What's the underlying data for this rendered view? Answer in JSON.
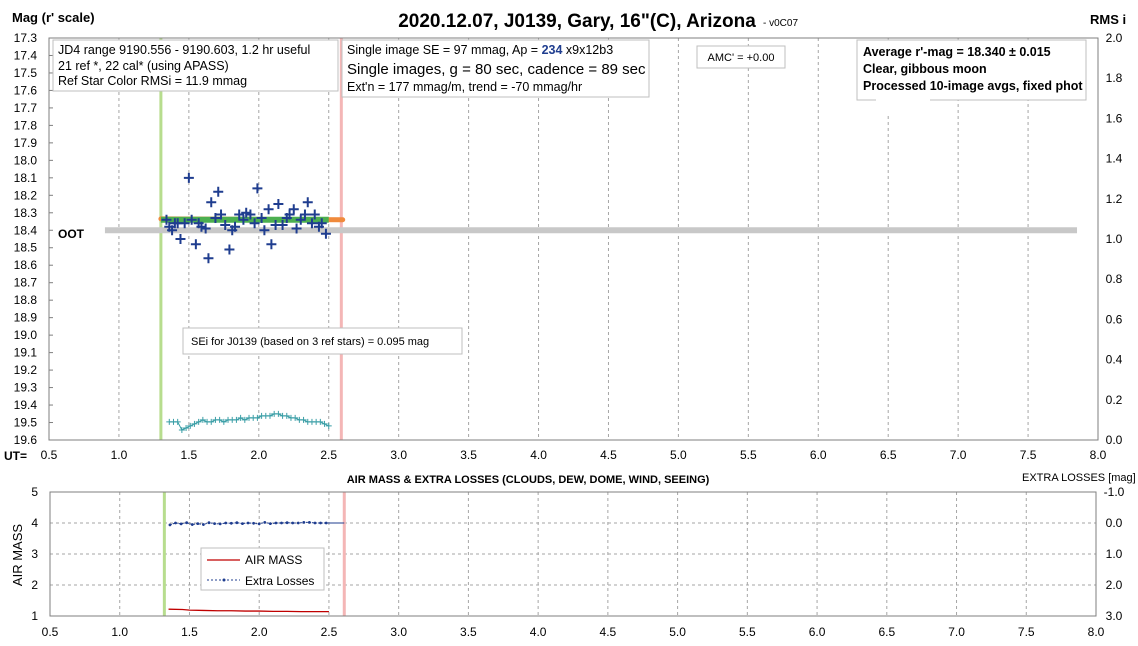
{
  "title": "2020.12.07, J0139, Gary, 16\"(C), Arizona",
  "version": "- v0C07",
  "colors": {
    "photometry": "#1f3d8f",
    "rms": "#3a9ea6",
    "avg": "#4caf50",
    "trend": "#f08a3c",
    "oot": "#c8c8c8",
    "start": "#b7dd8e",
    "end": "#f4b6b6",
    "airmass": "#c00000",
    "losses": "#1f3d8f"
  },
  "chart_data": [
    {
      "type": "scatter",
      "ylabel": "Mag (r' scale)",
      "y2label": "RMS i",
      "xlabel": "UT=",
      "xlim": [
        0.5,
        8.0
      ],
      "ylim": [
        17.3,
        19.6
      ],
      "y2lim": [
        0.0,
        2.0
      ],
      "y_inverted": true,
      "grid": true,
      "xticks": [
        "0.5",
        "1.0",
        "1.5",
        "2.0",
        "2.5",
        "3.0",
        "3.5",
        "4.0",
        "4.5",
        "5.0",
        "5.5",
        "6.0",
        "6.5",
        "7.0",
        "7.5",
        "8.0"
      ],
      "yticks": [
        "17.3",
        "17.4",
        "17.5",
        "17.6",
        "17.7",
        "17.8",
        "17.9",
        "18.0",
        "18.1",
        "18.2",
        "18.3",
        "18.4",
        "18.5",
        "18.6",
        "18.7",
        "18.8",
        "18.9",
        "19.0",
        "19.1",
        "19.2",
        "19.3",
        "19.4",
        "19.5",
        "19.6"
      ],
      "y2ticks": [
        "2.0",
        "1.8",
        "1.6",
        "1.4",
        "1.2",
        "1.0",
        "0.8",
        "0.6",
        "0.4",
        "0.2",
        "0.0"
      ],
      "start_ut": 1.3,
      "end_ut": 2.59,
      "oot": {
        "label": "OOT",
        "mag": 18.4,
        "x": [
          0.9,
          7.85
        ]
      },
      "average": {
        "mag": 18.34,
        "x": [
          1.3,
          2.5
        ]
      },
      "trend": {
        "x": [
          1.3,
          2.6
        ],
        "y": [
          18.335,
          18.34
        ]
      },
      "series": [
        {
          "x": [
            1.34,
            1.36,
            1.38,
            1.4,
            1.42,
            1.44,
            1.47,
            1.5,
            1.52,
            1.55,
            1.57,
            1.59,
            1.62,
            1.64,
            1.66,
            1.69,
            1.71,
            1.73,
            1.76,
            1.79,
            1.81,
            1.83,
            1.86,
            1.89,
            1.91,
            1.94,
            1.97,
            1.99,
            2.02,
            2.04,
            2.07,
            2.09,
            2.12,
            2.14,
            2.17,
            2.2,
            2.22,
            2.25,
            2.27,
            2.3,
            2.33,
            2.35,
            2.38,
            2.4,
            2.43,
            2.45,
            2.48
          ],
          "y": [
            18.34,
            18.38,
            18.4,
            18.36,
            18.36,
            18.45,
            18.36,
            18.1,
            18.34,
            18.48,
            18.36,
            18.38,
            18.39,
            18.56,
            18.24,
            18.33,
            18.18,
            18.31,
            18.37,
            18.51,
            18.4,
            18.38,
            18.31,
            18.34,
            18.3,
            18.31,
            18.36,
            18.16,
            18.33,
            18.4,
            18.28,
            18.48,
            18.37,
            18.25,
            18.37,
            18.33,
            18.31,
            18.28,
            18.39,
            18.34,
            18.31,
            18.24,
            18.36,
            18.31,
            18.38,
            18.36,
            18.42
          ]
        },
        {
          "x": [
            1.36,
            1.39,
            1.42,
            1.45,
            1.48,
            1.51,
            1.54,
            1.57,
            1.6,
            1.63,
            1.66,
            1.69,
            1.72,
            1.75,
            1.78,
            1.81,
            1.84,
            1.87,
            1.9,
            1.93,
            1.96,
            1.99,
            2.02,
            2.05,
            2.08,
            2.11,
            2.14,
            2.17,
            2.2,
            2.23,
            2.26,
            2.29,
            2.32,
            2.35,
            2.38,
            2.41,
            2.44,
            2.47,
            2.5
          ],
          "y": [
            0.09,
            0.09,
            0.09,
            0.05,
            0.06,
            0.07,
            0.08,
            0.09,
            0.1,
            0.09,
            0.09,
            0.1,
            0.1,
            0.09,
            0.1,
            0.1,
            0.1,
            0.11,
            0.1,
            0.11,
            0.11,
            0.11,
            0.12,
            0.12,
            0.12,
            0.13,
            0.13,
            0.12,
            0.12,
            0.11,
            0.11,
            0.1,
            0.1,
            0.09,
            0.09,
            0.09,
            0.09,
            0.08,
            0.07
          ]
        }
      ]
    },
    {
      "type": "line",
      "title": "AIR MASS & EXTRA LOSSES (CLOUDS, DEW, DOME, WIND, SEEING)",
      "ylabel": "AIR MASS",
      "y2label": "EXTRA LOSSES [mag]",
      "xlim": [
        0.5,
        8.0
      ],
      "ylim": [
        1,
        5
      ],
      "y2lim": [
        -1.0,
        3.0
      ],
      "y2_inverted": true,
      "grid": true,
      "xticks": [
        "0.5",
        "1.0",
        "1.5",
        "2.0",
        "2.5",
        "3.0",
        "3.5",
        "4.0",
        "4.5",
        "5.0",
        "5.5",
        "6.0",
        "6.5",
        "7.0",
        "7.5",
        "8.0"
      ],
      "yticks": [
        "5",
        "4",
        "3",
        "2",
        "1"
      ],
      "y2ticks": [
        "-1.0",
        "0.0",
        "1.0",
        "2.0",
        "3.0"
      ],
      "start_ut": 1.32,
      "end_ut": 2.61,
      "legend": [
        "AIR MASS",
        "Extra Losses"
      ],
      "series": [
        {
          "name": "AIR MASS",
          "x": [
            1.35,
            1.45,
            1.5,
            1.6,
            1.7,
            1.8,
            1.9,
            2.0,
            2.1,
            2.2,
            2.3,
            2.4,
            2.5
          ],
          "y": [
            1.22,
            1.21,
            1.19,
            1.18,
            1.17,
            1.17,
            1.16,
            1.16,
            1.15,
            1.15,
            1.14,
            1.14,
            1.14
          ]
        },
        {
          "name": "Extra Losses",
          "x": [
            1.36,
            1.4,
            1.44,
            1.48,
            1.52,
            1.56,
            1.6,
            1.64,
            1.68,
            1.72,
            1.76,
            1.8,
            1.84,
            1.88,
            1.92,
            1.96,
            2.0,
            2.04,
            2.08,
            2.12,
            2.16,
            2.2,
            2.24,
            2.28,
            2.32,
            2.36,
            2.4,
            2.44,
            2.48
          ],
          "y": [
            0.06,
            0.0,
            0.03,
            -0.01,
            0.05,
            0.02,
            0.05,
            -0.01,
            0.02,
            0.03,
            0.0,
            0.01,
            -0.01,
            0.02,
            0.0,
            0.01,
            0.03,
            -0.02,
            0.02,
            0.0,
            0.0,
            -0.01,
            0.0,
            0.0,
            -0.02,
            -0.02,
            0.0,
            0.0,
            0.0
          ]
        }
      ]
    }
  ],
  "boxes": {
    "jd": [
      "JD4 range 9190.556 - 9190.603, 1.2 hr useful",
      " 21 ref *, 22 cal* (using APASS)",
      "Ref Star Color RMSi = 11.9 mmag"
    ],
    "se": {
      "line1_a": "Single image SE = 97 mmag, Ap = ",
      "line1_b": "234",
      "line1_c": " x9x12b3",
      "line2": "Single images, g = 80 sec, cadence = 89 sec",
      "line3": "Ext'n = 177 mmag/m, trend = -70 mmag/hr"
    },
    "amc": "AMC' = +0.00",
    "avg": [
      "Average r'-mag =  18.340 ± 0.015",
      "Clear, gibbous moon",
      "Processed 10-image avgs, fixed phot"
    ],
    "sei": "SEi for J0139 (based on 3 ref stars) = 0.095 mag"
  }
}
